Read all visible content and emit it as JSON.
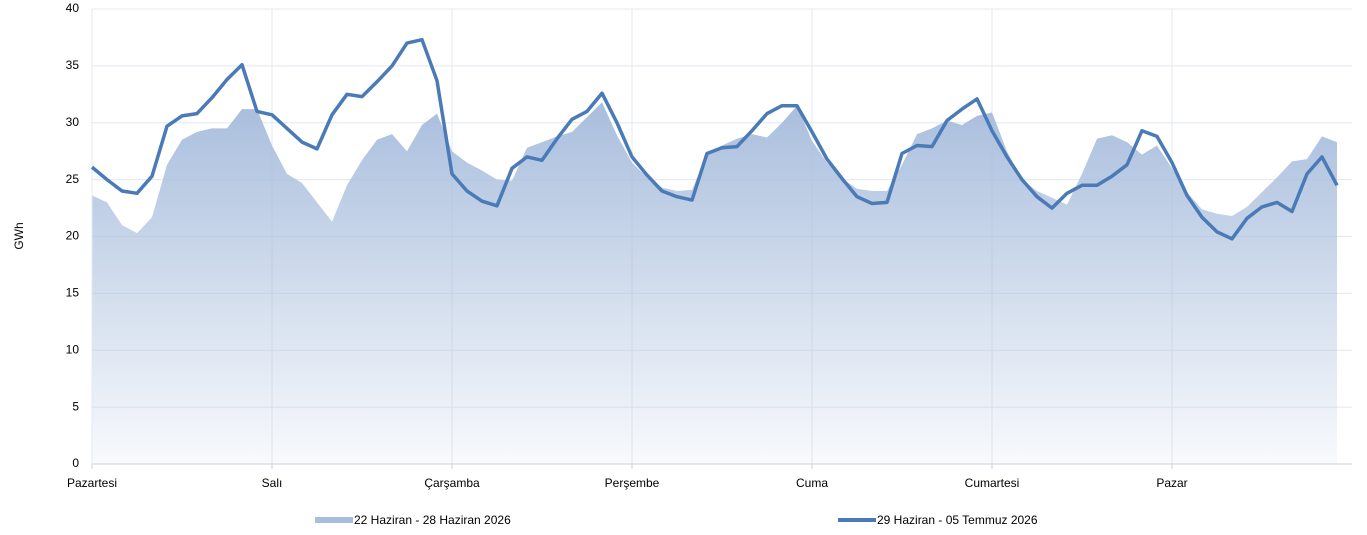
{
  "chart_data": {
    "type": "line-area",
    "y_label": "GWh",
    "x": [
      0,
      2,
      4,
      6,
      8,
      10,
      12,
      14,
      16,
      18,
      20,
      22,
      24,
      26,
      28,
      30,
      32,
      34,
      36,
      38,
      40,
      42,
      44,
      46,
      48,
      50,
      52,
      54,
      56,
      58,
      60,
      62,
      64,
      66,
      68,
      70,
      72,
      74,
      76,
      78,
      80,
      82,
      84,
      86,
      88,
      90,
      92,
      94,
      96,
      98,
      100,
      102,
      104,
      106,
      108,
      110,
      112,
      114,
      116,
      118,
      120,
      122,
      124,
      126,
      128,
      130,
      132,
      134,
      136,
      138,
      140,
      142,
      144,
      146,
      148,
      150,
      152,
      154,
      156,
      158,
      160,
      162,
      164,
      166
    ],
    "xlim": [
      0,
      167
    ],
    "xticks": [
      {
        "value": 0,
        "label": "Pazartesi"
      },
      {
        "value": 24,
        "label": "Salı"
      },
      {
        "value": 48,
        "label": "Çarşamba"
      },
      {
        "value": 72,
        "label": "Perşembe"
      },
      {
        "value": 96,
        "label": "Cuma"
      },
      {
        "value": 120,
        "label": "Cumartesi"
      },
      {
        "value": 144,
        "label": "Pazar"
      }
    ],
    "ylim": [
      0,
      40
    ],
    "yticks": [
      0,
      5,
      10,
      15,
      20,
      25,
      30,
      35,
      40
    ],
    "grid": true,
    "series": [
      {
        "name": "22 Haziran - 28 Haziran 2026",
        "style": "area",
        "color": "#a9bedd",
        "values": [
          23.6,
          23.0,
          21.0,
          20.3,
          21.7,
          26.3,
          28.5,
          29.2,
          29.5,
          29.5,
          31.2,
          31.2,
          28.0,
          25.5,
          24.7,
          23.0,
          21.3,
          24.5,
          26.7,
          28.5,
          29.0,
          27.5,
          29.8,
          30.8,
          27.5,
          26.5,
          25.8,
          25.0,
          24.9,
          27.8,
          28.3,
          28.8,
          29.2,
          30.5,
          31.8,
          28.9,
          26.5,
          25.2,
          24.3,
          24.0,
          24.1,
          27.3,
          28.0,
          28.6,
          29.0,
          28.7,
          30.0,
          31.5,
          28.4,
          26.5,
          25.1,
          24.2,
          24.0,
          24.0,
          26.3,
          29.0,
          29.5,
          30.2,
          29.8,
          30.6,
          30.9,
          27.5,
          25.0,
          24.0,
          23.4,
          22.8,
          25.5,
          28.6,
          28.9,
          28.3,
          27.2,
          28.0,
          26.0,
          23.9,
          22.4,
          22.0,
          21.8,
          22.6,
          23.9,
          25.2,
          26.6,
          26.8,
          28.8,
          28.3
        ]
      },
      {
        "name": "29 Haziran - 05 Temmuz 2026",
        "style": "line",
        "color": "#4a7bb7",
        "values": [
          26.1,
          25.0,
          24.0,
          23.8,
          25.3,
          29.7,
          30.6,
          30.8,
          32.2,
          33.8,
          35.1,
          31.0,
          30.7,
          29.5,
          28.3,
          27.7,
          30.7,
          32.5,
          32.3,
          33.6,
          35.0,
          37.0,
          37.3,
          33.7,
          25.5,
          24.0,
          23.1,
          22.7,
          26.0,
          27.0,
          26.7,
          28.6,
          30.3,
          31.0,
          32.6,
          30.0,
          27.0,
          25.4,
          24.0,
          23.5,
          23.2,
          27.3,
          27.8,
          27.9,
          29.3,
          30.8,
          31.5,
          31.5,
          29.2,
          26.8,
          25.1,
          23.5,
          22.9,
          23.0,
          27.3,
          28.0,
          27.9,
          30.2,
          31.2,
          32.1,
          29.3,
          27.0,
          25.0,
          23.5,
          22.5,
          23.8,
          24.5,
          24.5,
          25.3,
          26.3,
          29.3,
          28.8,
          26.5,
          23.6,
          21.7,
          20.4,
          19.8,
          21.6,
          22.6,
          23.0,
          22.2,
          25.5,
          27.0,
          24.5
        ]
      }
    ]
  }
}
